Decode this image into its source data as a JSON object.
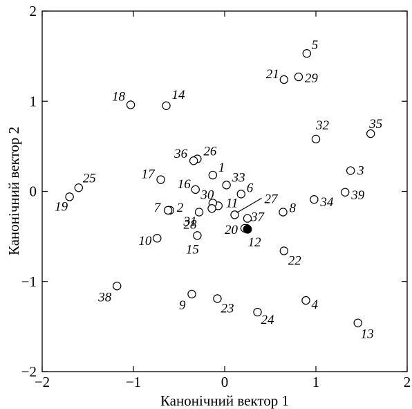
{
  "chart_data": {
    "type": "scatter",
    "title": "",
    "xlabel": "Канонічний вектор 1",
    "ylabel": "Канонічний вектор 2",
    "xlim": [
      -2,
      2
    ],
    "ylim": [
      -2,
      2
    ],
    "xticks": [
      -2,
      -1,
      0,
      1,
      2
    ],
    "yticks": [
      -2,
      -1,
      0,
      1,
      2
    ],
    "xtick_labels": [
      "−2",
      "−1",
      "0",
      "1",
      "2"
    ],
    "ytick_labels": [
      "−2",
      "−1",
      "0",
      "1",
      "2"
    ],
    "grid": false,
    "points": [
      {
        "label": "1",
        "x": -0.13,
        "y": 0.18
      },
      {
        "label": "2",
        "x": -0.6,
        "y": -0.21
      },
      {
        "label": "3",
        "x": 1.38,
        "y": 0.23
      },
      {
        "label": "4",
        "x": 0.89,
        "y": -1.21
      },
      {
        "label": "5",
        "x": 0.9,
        "y": 1.53
      },
      {
        "label": "6",
        "x": 0.18,
        "y": -0.03
      },
      {
        "label": "7",
        "x": -0.62,
        "y": -0.21
      },
      {
        "label": "8",
        "x": 0.64,
        "y": -0.23
      },
      {
        "label": "9",
        "x": -0.36,
        "y": -1.14
      },
      {
        "label": "10",
        "x": -0.74,
        "y": -0.52
      },
      {
        "label": "11",
        "x": -0.07,
        "y": -0.16
      },
      {
        "label": "12",
        "x": 0.24,
        "y": -0.41
      },
      {
        "label": "13",
        "x": 1.46,
        "y": -1.46
      },
      {
        "label": "14",
        "x": -0.64,
        "y": 0.95
      },
      {
        "label": "15",
        "x": -0.3,
        "y": -0.49
      },
      {
        "label": "16",
        "x": -0.32,
        "y": 0.02
      },
      {
        "label": "17",
        "x": -0.7,
        "y": 0.13
      },
      {
        "label": "18",
        "x": -1.03,
        "y": 0.96
      },
      {
        "label": "19",
        "x": -1.7,
        "y": -0.06
      },
      {
        "label": "20",
        "x": 0.22,
        "y": -0.41
      },
      {
        "label": "21",
        "x": 0.65,
        "y": 1.24
      },
      {
        "label": "22",
        "x": 0.65,
        "y": -0.66
      },
      {
        "label": "23",
        "x": -0.08,
        "y": -1.19
      },
      {
        "label": "24",
        "x": 0.36,
        "y": -1.34
      },
      {
        "label": "25",
        "x": -1.6,
        "y": 0.04
      },
      {
        "label": "26",
        "x": -0.3,
        "y": 0.36
      },
      {
        "label": "27",
        "x": 0.11,
        "y": -0.26
      },
      {
        "label": "28",
        "x": -0.28,
        "y": -0.23
      },
      {
        "label": "29",
        "x": 0.81,
        "y": 1.27
      },
      {
        "label": "30",
        "x": -0.13,
        "y": -0.13
      },
      {
        "label": "31",
        "x": -0.14,
        "y": -0.19
      },
      {
        "label": "32",
        "x": 1.0,
        "y": 0.58
      },
      {
        "label": "33",
        "x": 0.02,
        "y": 0.07
      },
      {
        "label": "34",
        "x": 0.98,
        "y": -0.09
      },
      {
        "label": "35",
        "x": 1.6,
        "y": 0.64
      },
      {
        "label": "36",
        "x": -0.34,
        "y": 0.34
      },
      {
        "label": "37",
        "x": 0.25,
        "y": -0.3
      },
      {
        "label": "38",
        "x": -1.18,
        "y": -1.05
      },
      {
        "label": "39",
        "x": 1.32,
        "y": -0.01
      }
    ],
    "highlight_point": {
      "x": 0.25,
      "y": -0.42,
      "style": "filled"
    }
  }
}
